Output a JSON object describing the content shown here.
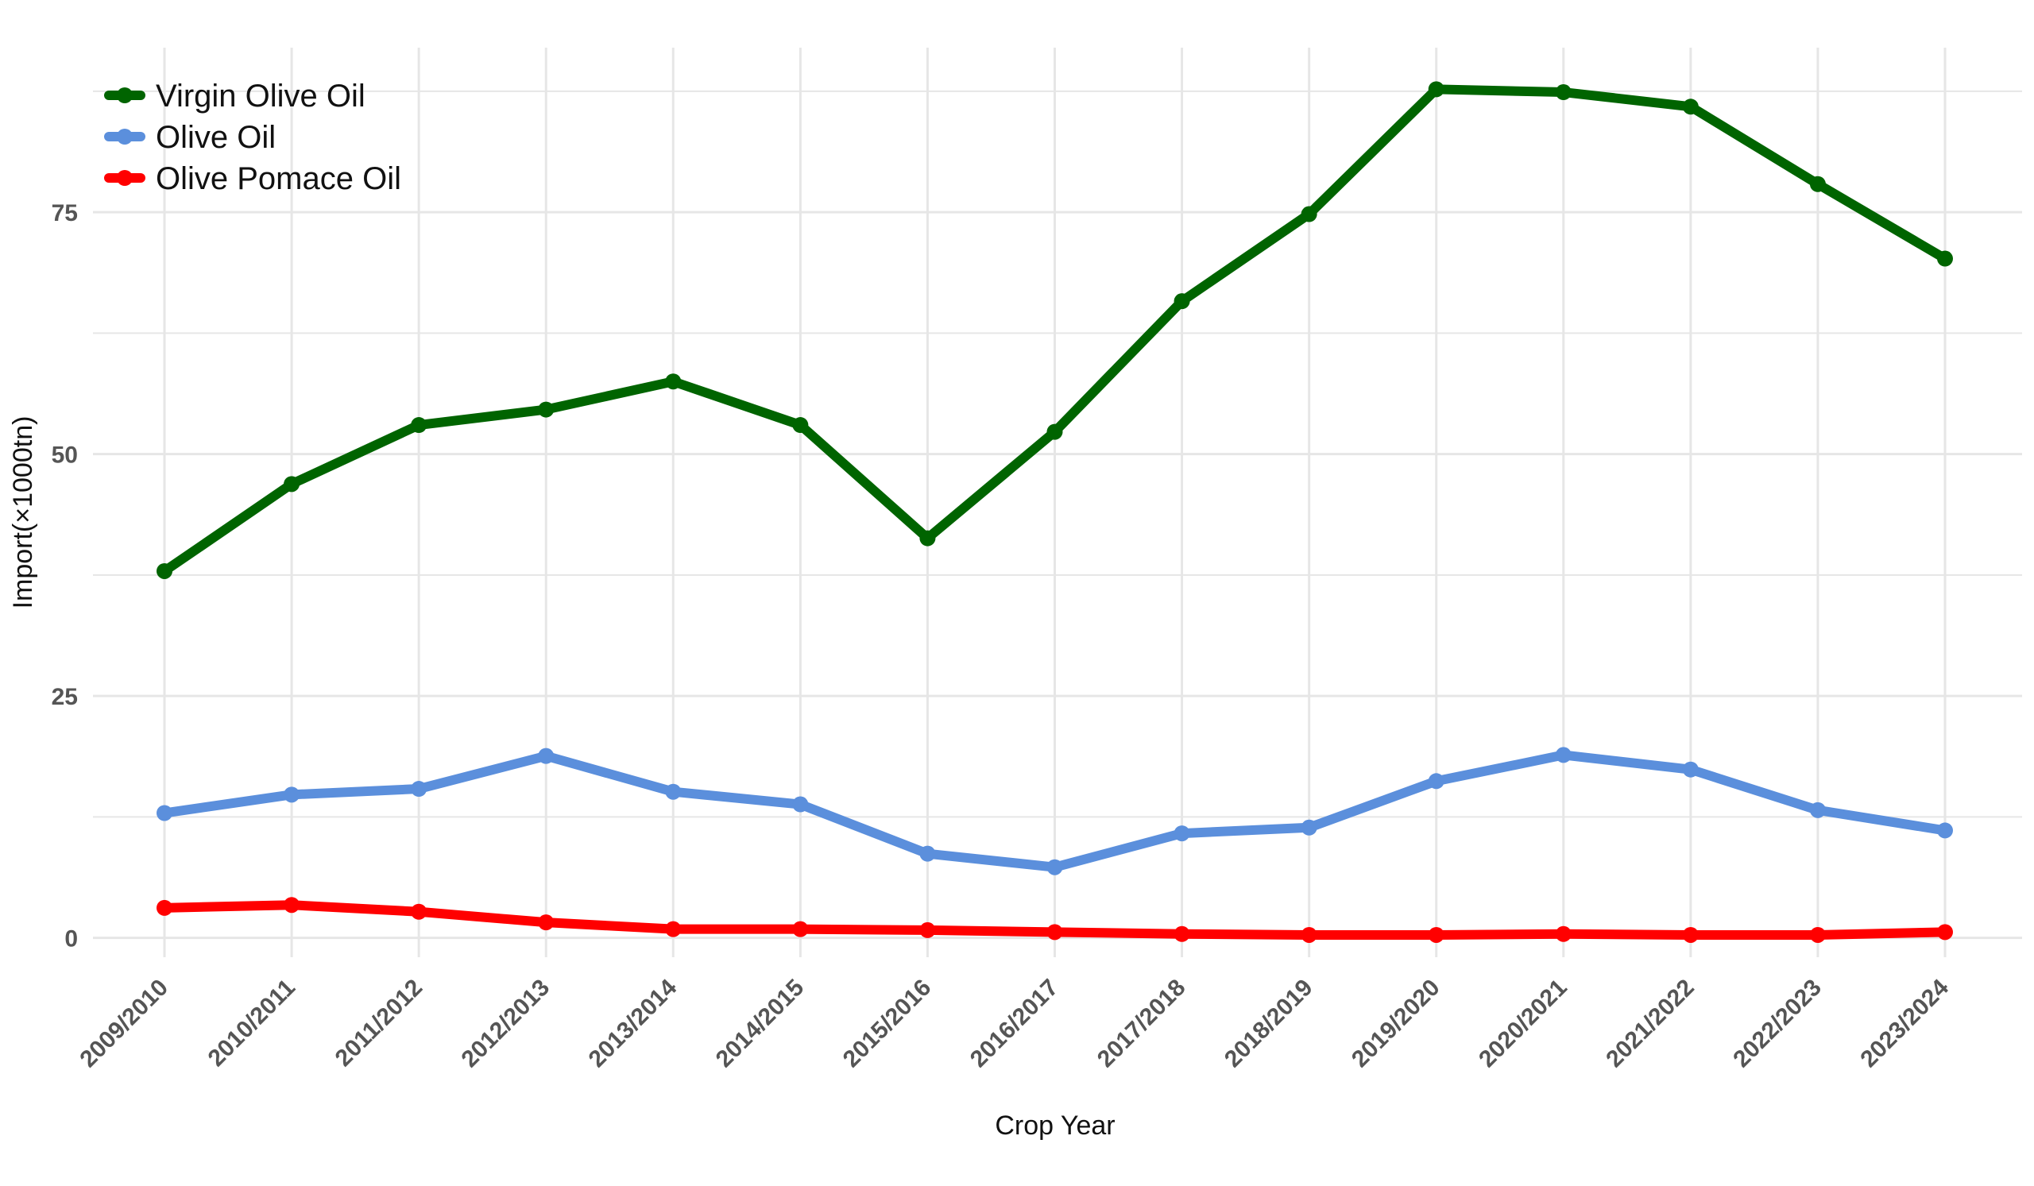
{
  "chart_data": {
    "type": "line",
    "xlabel": "Crop Year",
    "ylabel": "Import(×1000tn)",
    "ylim": [
      -2,
      92
    ],
    "yticks": [
      0,
      25,
      50,
      75
    ],
    "grid": true,
    "legend_position": "top-left",
    "categories": [
      "2009/2010",
      "2010/2011",
      "2011/2012",
      "2012/2013",
      "2013/2014",
      "2014/2015",
      "2015/2016",
      "2016/2017",
      "2017/2018",
      "2018/2019",
      "2019/2020",
      "2020/2021",
      "2021/2022",
      "2022/2023",
      "2023/2024"
    ],
    "series": [
      {
        "name": "Virgin Olive Oil",
        "color": "#006400",
        "values": [
          37.9,
          46.9,
          53.0,
          54.6,
          57.5,
          53.0,
          41.3,
          52.3,
          65.8,
          74.8,
          87.7,
          87.4,
          85.9,
          77.9,
          70.2
        ]
      },
      {
        "name": "Olive Oil",
        "color": "#5b8fdc",
        "values": [
          12.9,
          14.8,
          15.4,
          18.8,
          15.1,
          13.8,
          8.7,
          7.3,
          10.8,
          11.4,
          16.2,
          18.9,
          17.4,
          13.2,
          11.1
        ]
      },
      {
        "name": "Olive Pomace Oil",
        "color": "#ff0000",
        "values": [
          3.1,
          3.4,
          2.7,
          1.6,
          0.9,
          0.9,
          0.8,
          0.6,
          0.4,
          0.3,
          0.3,
          0.4,
          0.3,
          0.3,
          0.6
        ]
      }
    ]
  }
}
